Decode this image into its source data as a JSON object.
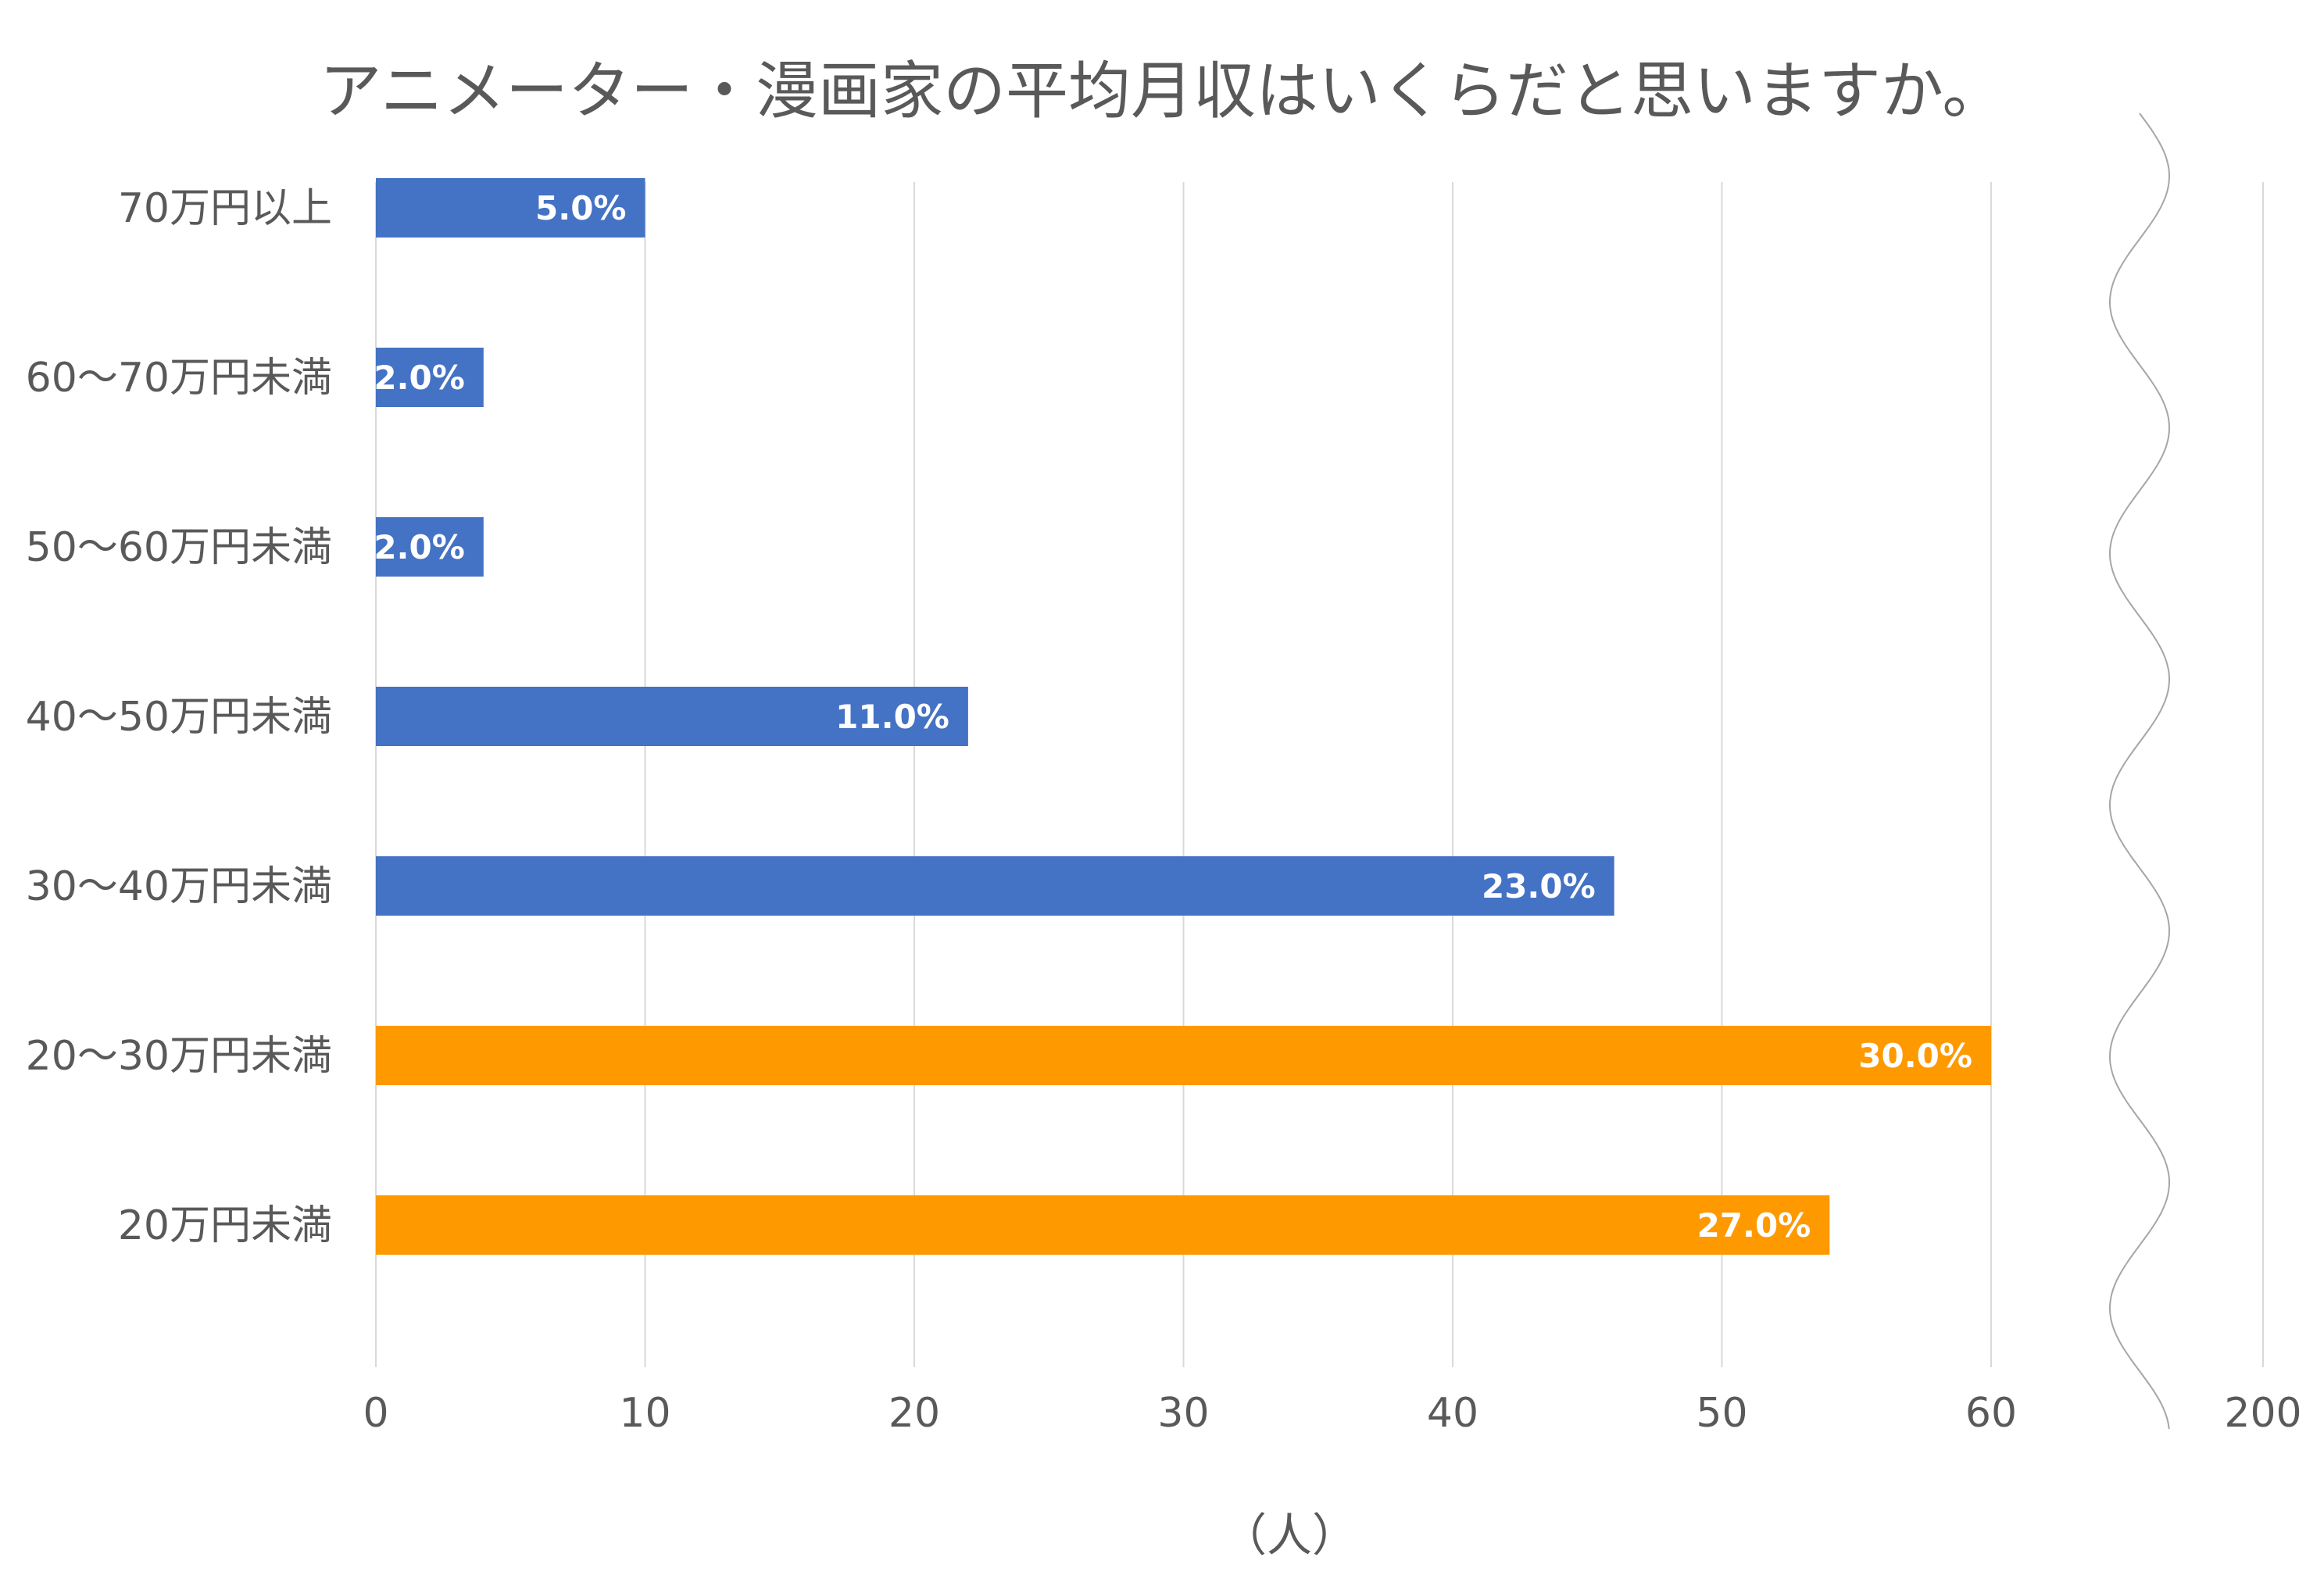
{
  "chart_data": {
    "type": "bar",
    "orientation": "horizontal",
    "title": "アニメーター・漫画家の平均月収はいくらだと思いますか。",
    "xlabel": "（人）",
    "ylabel": "",
    "categories": [
      "20万円未満",
      "20～30万円未満",
      "30～40万円未満",
      "40～50万円未満",
      "50～60万円未満",
      "60～70万円未満",
      "70万円以上"
    ],
    "values": [
      54,
      60,
      46,
      22,
      4,
      4,
      10
    ],
    "data_labels": [
      "27.0%",
      "30.0%",
      "23.0%",
      "11.0%",
      "2.0%",
      "2.0%",
      "5.0%"
    ],
    "bar_colors": [
      "#FF9900",
      "#FF9900",
      "#4472C4",
      "#4472C4",
      "#4472C4",
      "#4472C4",
      "#4472C4"
    ],
    "x_ticks": [
      "0",
      "10",
      "20",
      "30",
      "40",
      "50",
      "60",
      "200"
    ],
    "xlim": [
      0,
      70
    ],
    "axis_break": "between 60 and 200",
    "grid": true,
    "legend": "none"
  }
}
